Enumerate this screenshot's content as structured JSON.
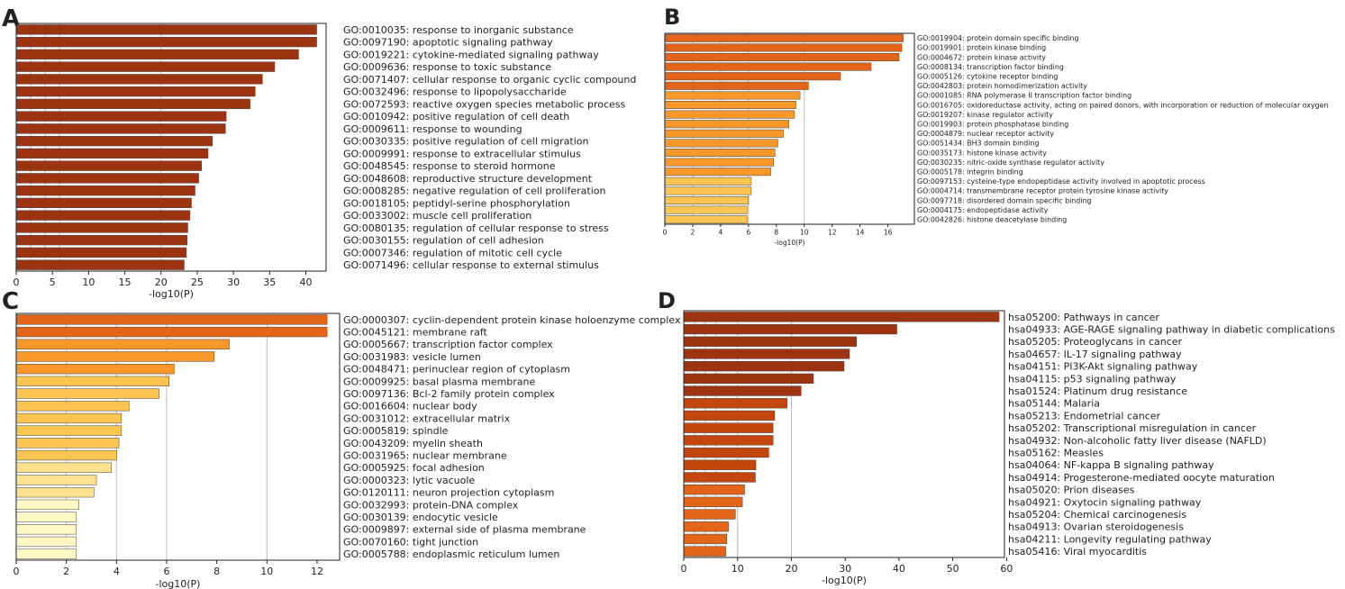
{
  "colors": {
    "c1": "#9c3412",
    "c2": "#c4460f",
    "c3": "#e3651a",
    "c4": "#f9982a",
    "c5": "#fcc451",
    "c6": "#fde18f",
    "c7": "#fff7c4",
    "grid": "#bbbbbb"
  },
  "chart_data": [
    {
      "panel": "A",
      "type": "bar",
      "orientation": "horizontal",
      "xlabel": "-log10(P)",
      "xlim": [
        0,
        42.8
      ],
      "xticks": [
        0,
        5,
        10,
        15,
        20,
        25,
        30,
        35,
        40
      ],
      "gridlines": [
        2,
        4,
        6,
        20
      ],
      "categories": [
        "GO:0010035: response to inorganic substance",
        "GO:0097190: apoptotic signaling pathway",
        "GO:0019221: cytokine-mediated signaling pathway",
        "GO:0009636: response to toxic substance",
        "GO:0071407: cellular response to organic cyclic compound",
        "GO:0032496: response to lipopolysaccharide",
        "GO:0072593: reactive oxygen species metabolic process",
        "GO:0010942: positive regulation of cell death",
        "GO:0009611: response to wounding",
        "GO:0030335: positive regulation of cell migration",
        "GO:0009991: response to extracellular stimulus",
        "GO:0048545: response to steroid hormone",
        "GO:0048608: reproductive structure development",
        "GO:0008285: negative regulation of cell proliferation",
        "GO:0018105: peptidyl-serine phosphorylation",
        "GO:0033002: muscle cell proliferation",
        "GO:0080135: regulation of cellular response to stress",
        "GO:0030155: regulation of cell adhesion",
        "GO:0007346: regulation of mitotic cell cycle",
        "GO:0071496: cellular response to external stimulus"
      ],
      "values": [
        41.5,
        41.5,
        39.0,
        35.7,
        34.0,
        33.0,
        32.3,
        29.0,
        28.9,
        27.1,
        26.5,
        25.6,
        25.2,
        24.7,
        24.2,
        24.0,
        23.7,
        23.6,
        23.5,
        23.2
      ],
      "color_class": [
        "c1",
        "c1",
        "c1",
        "c1",
        "c1",
        "c1",
        "c1",
        "c1",
        "c1",
        "c1",
        "c1",
        "c1",
        "c1",
        "c1",
        "c1",
        "c1",
        "c1",
        "c1",
        "c1",
        "c1"
      ]
    },
    {
      "panel": "B",
      "type": "bar",
      "orientation": "horizontal",
      "xlabel": "-log10(P)",
      "xlim": [
        0,
        17.9
      ],
      "xticks": [
        0,
        2,
        4,
        6,
        8,
        10,
        12,
        14,
        16
      ],
      "gridlines": [
        2,
        4,
        6,
        10
      ],
      "categories": [
        "GO:0019904: protein domain specific binding",
        "GO:0019901: protein kinase binding",
        "GO:0004672: protein kinase activity",
        "GO:0008134: transcription factor binding",
        "GO:0005126: cytokine receptor binding",
        "GO:0042803: protein homodimerization activity",
        "GO:0001085: RNA polymerase II transcription factor binding",
        "GO:0016705: oxidoreductase activity, acting on paired donors, with incorporation or reduction of molecular oxygen",
        "GO:0019207: kinase regulator activity",
        "GO:0019903: protein phosphatase binding",
        "GO:0004879: nuclear receptor activity",
        "GO:0051434: BH3 domain binding",
        "GO:0035173: histone kinase activity",
        "GO:0030235: nitric-oxide synthase regulator activity",
        "GO:0005178: integrin binding",
        "GO:0097153: cysteine-type endopeptidase activity involved in apoptotic process",
        "GO:0004714: transmembrane receptor protein tyrosine kinase activity",
        "GO:0097718: disordered domain specific binding",
        "GO:0004175: endopeptidase activity",
        "GO:0042826: histone deacetylase binding"
      ],
      "values": [
        17.1,
        17.0,
        16.8,
        14.8,
        12.6,
        10.3,
        9.7,
        9.4,
        9.3,
        8.9,
        8.5,
        8.1,
        7.9,
        7.8,
        7.6,
        6.2,
        6.2,
        6.0,
        5.9,
        5.9
      ],
      "color_class": [
        "c3",
        "c3",
        "c3",
        "c3",
        "c3",
        "c3",
        "c4",
        "c4",
        "c4",
        "c4",
        "c4",
        "c4",
        "c4",
        "c4",
        "c4",
        "c5",
        "c5",
        "c5",
        "c5",
        "c5"
      ]
    },
    {
      "panel": "C",
      "type": "bar",
      "orientation": "horizontal",
      "xlabel": "-log10(P)",
      "xlim": [
        0,
        12.9
      ],
      "xticks": [
        0,
        2,
        4,
        6,
        8,
        10,
        12
      ],
      "gridlines": [
        2,
        4,
        6,
        10
      ],
      "categories": [
        "GO:0000307: cyclin-dependent protein kinase holoenzyme complex",
        "GO:0045121: membrane raft",
        "GO:0005667: transcription factor complex",
        "GO:0031983: vesicle lumen",
        "GO:0048471: perinuclear region of cytoplasm",
        "GO:0009925: basal plasma membrane",
        "GO:0097136: Bcl-2 family protein complex",
        "GO:0016604: nuclear body",
        "GO:0031012: extracellular matrix",
        "GO:0005819: spindle",
        "GO:0043209: myelin sheath",
        "GO:0031965: nuclear membrane",
        "GO:0005925: focal adhesion",
        "GO:0000323: lytic vacuole",
        "GO:0120111: neuron projection cytoplasm",
        "GO:0032993: protein-DNA complex",
        "GO:0030139: endocytic vesicle",
        "GO:0009897: external side of plasma membrane",
        "GO:0070160: tight junction",
        "GO:0005788: endoplasmic reticulum lumen"
      ],
      "values": [
        12.4,
        12.4,
        8.5,
        7.9,
        6.3,
        6.1,
        5.7,
        4.5,
        4.2,
        4.2,
        4.1,
        4.0,
        3.8,
        3.2,
        3.1,
        2.5,
        2.4,
        2.4,
        2.4,
        2.4
      ],
      "color_class": [
        "c3",
        "c3",
        "c4",
        "c4",
        "c4",
        "c5",
        "c5",
        "c5",
        "c5",
        "c5",
        "c5",
        "c5",
        "c6",
        "c6",
        "c6",
        "c7",
        "c7",
        "c7",
        "c7",
        "c7"
      ]
    },
    {
      "panel": "D",
      "type": "bar",
      "orientation": "horizontal",
      "xlabel": "-log10(P)",
      "xlim": [
        0,
        59.6
      ],
      "xticks": [
        0,
        10,
        20,
        30,
        40,
        50,
        60
      ],
      "gridlines": [
        2,
        4,
        6,
        10,
        20
      ],
      "categories": [
        "hsa05200: Pathways in cancer",
        "hsa04933: AGE-RAGE signaling pathway in diabetic complications",
        "hsa05205: Proteoglycans in cancer",
        "hsa04657: IL-17 signaling pathway",
        "hsa04151: PI3K-Akt signaling pathway",
        "hsa04115: p53 signaling pathway",
        "hsa01524: Platinum drug resistance",
        "hsa05144: Malaria",
        "hsa05213: Endometrial cancer",
        "hsa05202: Transcriptional misregulation in cancer",
        "hsa04932: Non-alcoholic fatty liver disease (NAFLD)",
        "hsa05162: Measles",
        "hsa04064: NF-kappa B signaling pathway",
        "hsa04914: Progesterone-mediated oocyte maturation",
        "hsa05020: Prion diseases",
        "hsa04921: Oxytocin signaling pathway",
        "hsa05204: Chemical carcinogenesis",
        "hsa04913: Ovarian steroidogenesis",
        "hsa04211: Longevity regulating pathway",
        "hsa05416: Viral myocarditis"
      ],
      "values": [
        58.6,
        39.6,
        32.1,
        30.8,
        29.8,
        24.1,
        21.8,
        19.2,
        16.9,
        16.6,
        16.6,
        15.8,
        13.4,
        13.3,
        11.3,
        10.9,
        9.6,
        8.3,
        8.0,
        7.8
      ],
      "color_class": [
        "c1",
        "c1",
        "c1",
        "c1",
        "c1",
        "c1",
        "c1",
        "c2",
        "c2",
        "c2",
        "c2",
        "c2",
        "c2",
        "c2",
        "c3",
        "c3",
        "c3",
        "c3",
        "c3",
        "c3"
      ]
    }
  ]
}
